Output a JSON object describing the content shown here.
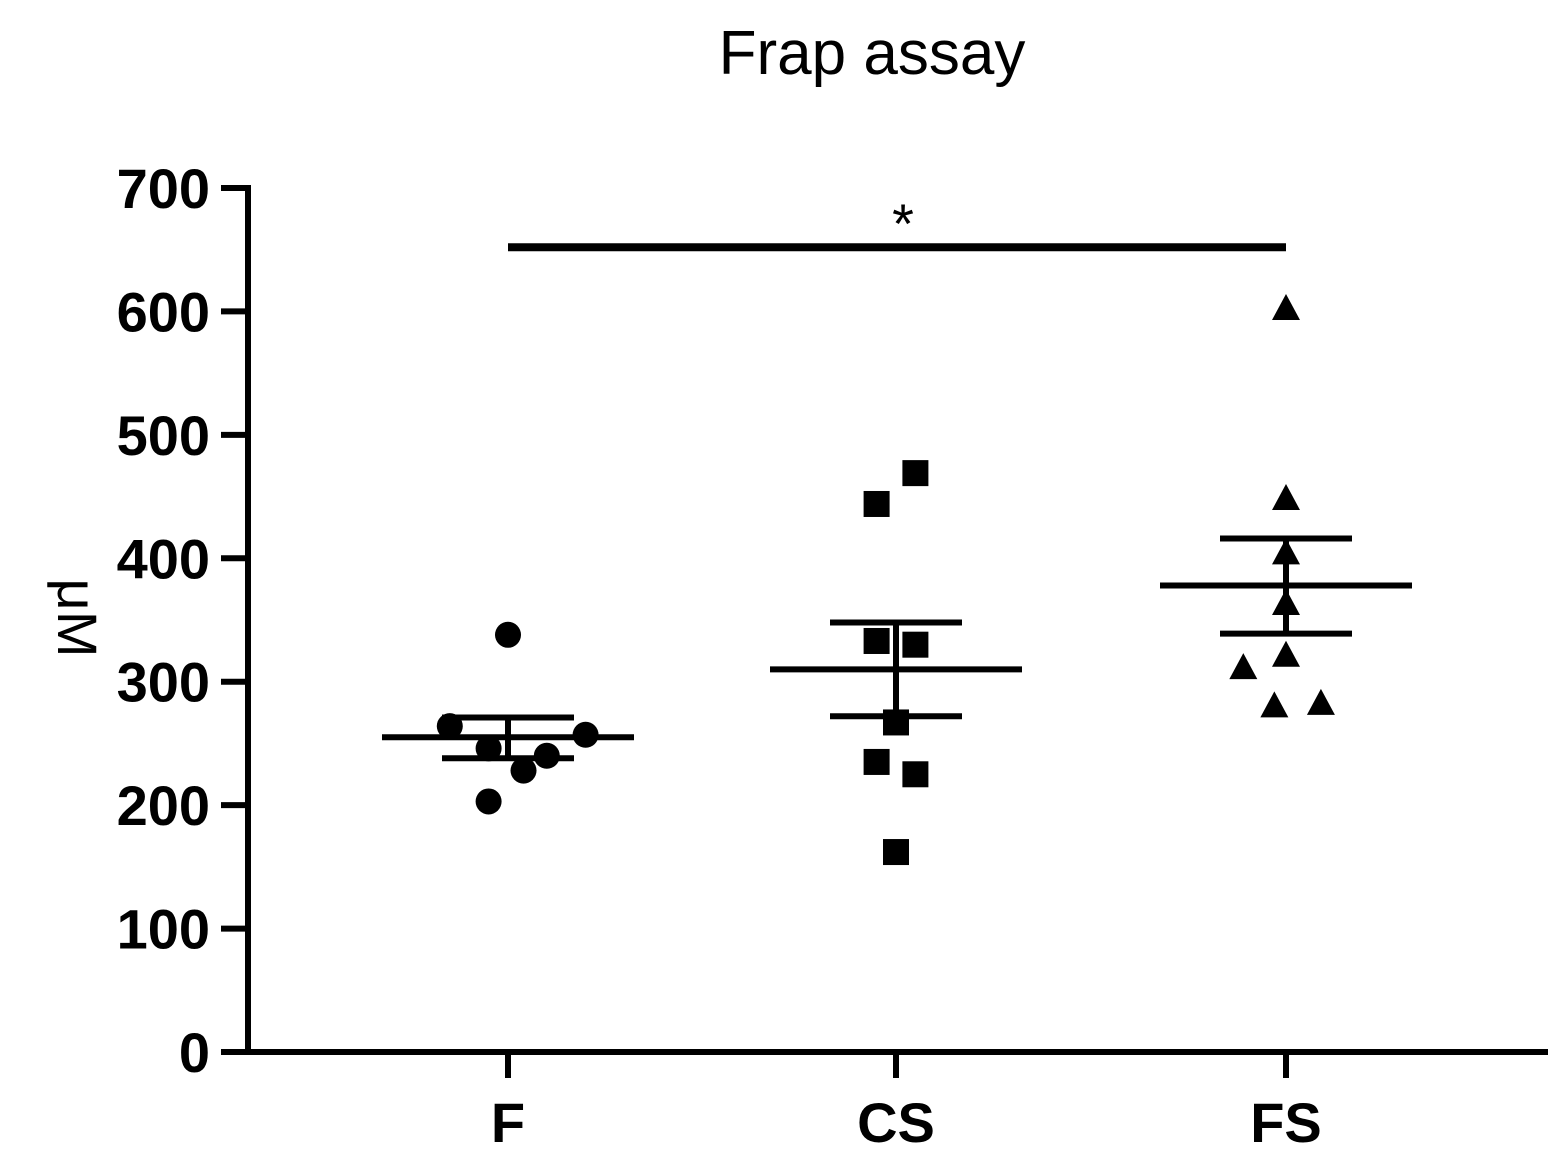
{
  "chart_data": {
    "type": "scatter",
    "title": "Frap assay",
    "ylabel": "μM",
    "xlabel": "",
    "ylim": [
      0,
      700
    ],
    "yticks": [
      0,
      100,
      200,
      300,
      400,
      500,
      600,
      700
    ],
    "categories": [
      "F",
      "CS",
      "FS"
    ],
    "grid": false,
    "legend": "none",
    "series": [
      {
        "category": "F",
        "marker": "circle",
        "points": [
          {
            "offset": 0.0,
            "value": 338
          },
          {
            "offset": -0.15,
            "value": 264
          },
          {
            "offset": 0.2,
            "value": 257
          },
          {
            "offset": -0.05,
            "value": 246
          },
          {
            "offset": 0.1,
            "value": 240
          },
          {
            "offset": 0.04,
            "value": 228
          },
          {
            "offset": -0.05,
            "value": 203
          }
        ],
        "mean": 255,
        "sem_upper": 271,
        "sem_lower": 238
      },
      {
        "category": "CS",
        "marker": "square",
        "points": [
          {
            "offset": 0.05,
            "value": 469
          },
          {
            "offset": -0.05,
            "value": 444
          },
          {
            "offset": -0.05,
            "value": 333
          },
          {
            "offset": 0.05,
            "value": 330
          },
          {
            "offset": 0.0,
            "value": 267
          },
          {
            "offset": -0.05,
            "value": 235
          },
          {
            "offset": 0.05,
            "value": 225
          },
          {
            "offset": 0.0,
            "value": 162
          }
        ],
        "mean": 310,
        "sem_upper": 348,
        "sem_lower": 272
      },
      {
        "category": "FS",
        "marker": "triangle",
        "points": [
          {
            "offset": 0.0,
            "value": 602
          },
          {
            "offset": 0.0,
            "value": 448
          },
          {
            "offset": 0.0,
            "value": 404
          },
          {
            "offset": 0.0,
            "value": 363
          },
          {
            "offset": 0.0,
            "value": 321
          },
          {
            "offset": -0.11,
            "value": 311
          },
          {
            "offset": -0.03,
            "value": 280
          },
          {
            "offset": 0.09,
            "value": 282
          }
        ],
        "mean": 378,
        "sem_upper": 416,
        "sem_lower": 339
      }
    ],
    "annotations": [
      {
        "type": "significance",
        "from": "F",
        "to": "FS",
        "value": 652,
        "label": "*"
      }
    ]
  }
}
